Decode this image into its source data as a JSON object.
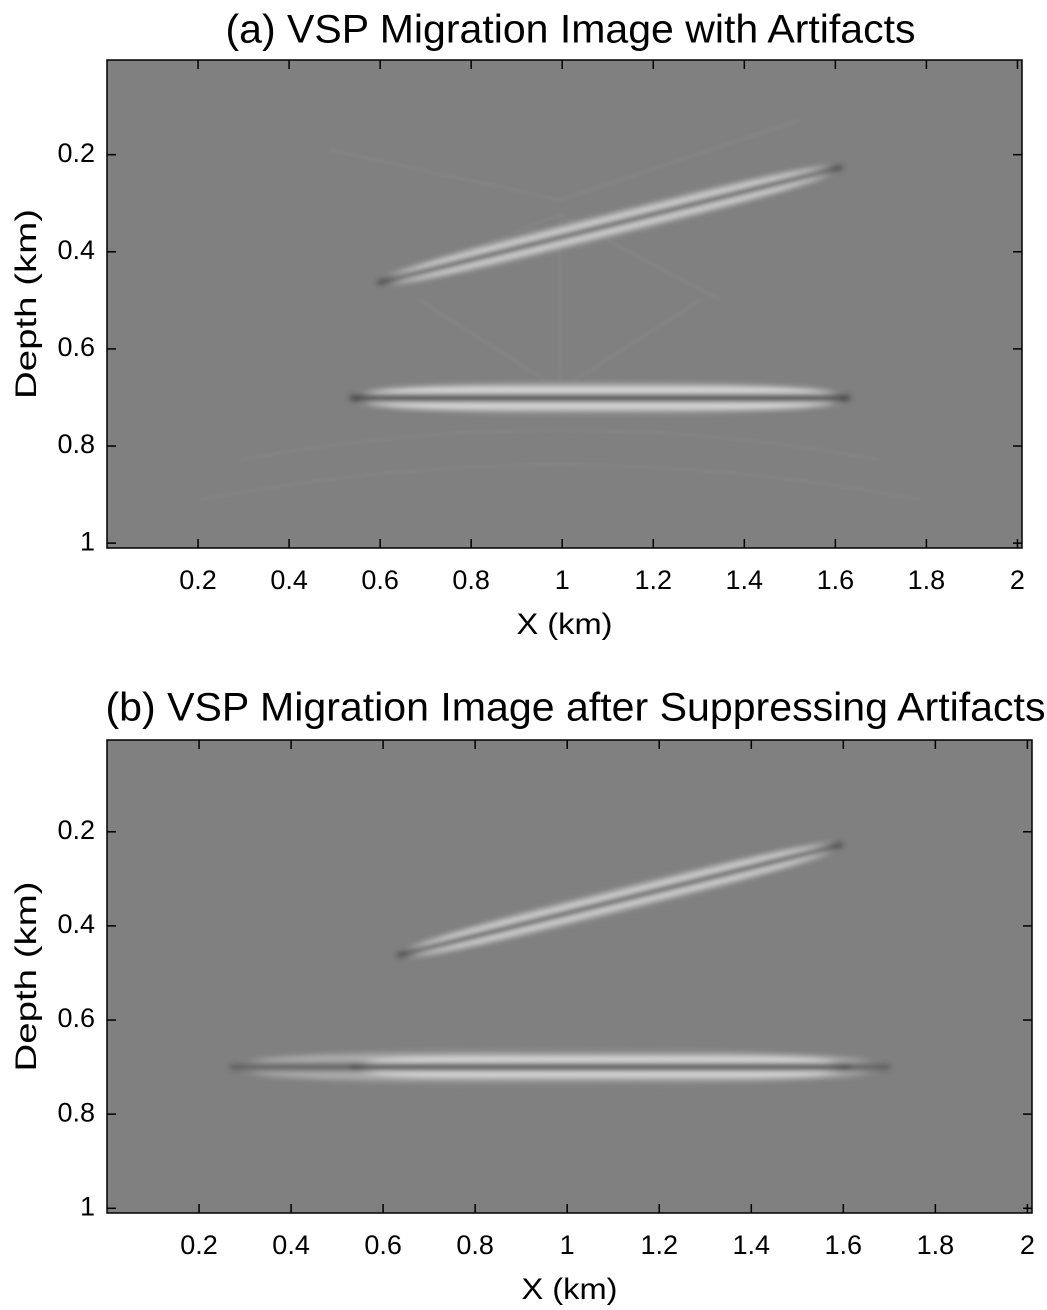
{
  "chart_data": [
    {
      "type": "image",
      "title": "(a) VSP Migration Image with Artifacts",
      "xlabel": "X (km)",
      "ylabel": "Depth (km)",
      "xlim": [
        0,
        2.01
      ],
      "ylim": [
        0.005,
        1.01
      ],
      "xticks": [
        0.2,
        0.4,
        0.6,
        0.8,
        1,
        1.2,
        1.4,
        1.6,
        1.8,
        2
      ],
      "yticks": [
        0.2,
        0.4,
        0.6,
        0.8,
        1
      ]
    },
    {
      "type": "image",
      "title": "(b) VSP Migration Image after Suppressing Artifacts",
      "xlabel": "X (km)",
      "ylabel": "Depth (km)",
      "xlim": [
        0,
        2.01
      ],
      "ylim": [
        0.005,
        1.01
      ],
      "xticks": [
        0.2,
        0.4,
        0.6,
        0.8,
        1,
        1.2,
        1.4,
        1.6,
        1.8,
        2
      ],
      "yticks": [
        0.2,
        0.4,
        0.6,
        0.8,
        1
      ]
    }
  ]
}
